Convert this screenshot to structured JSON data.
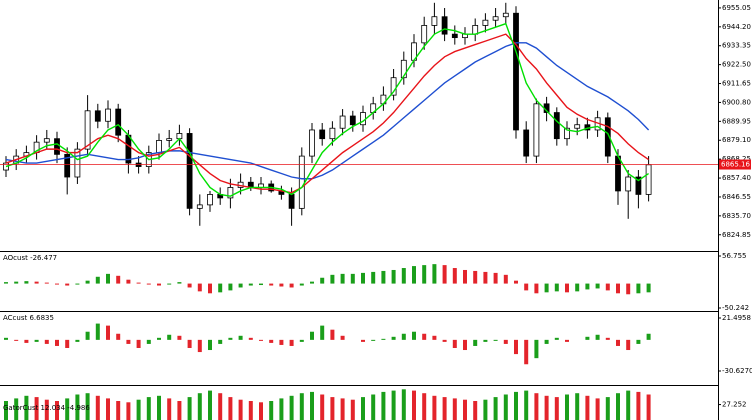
{
  "chart_data": [
    {
      "type": "candlestick",
      "open": [
        6862,
        6866,
        6870,
        6872,
        6878,
        6880,
        6871,
        6858,
        6874,
        6896,
        6890,
        6897,
        6882,
        6866,
        6864,
        6872,
        6879,
        6880,
        6883,
        6840,
        6842,
        6848,
        6846,
        6852,
        6855,
        6852,
        6854,
        6850,
        6848,
        6840,
        6870,
        6885,
        6880,
        6886,
        6893,
        6888,
        6895,
        6900,
        6905,
        6915,
        6925,
        6935,
        6945,
        6950,
        6940,
        6938,
        6940,
        6945,
        6948,
        6950,
        6952,
        6885,
        6870,
        6900,
        6895,
        6880,
        6886,
        6888,
        6885,
        6892,
        6870,
        6850,
        6858,
        6848
      ],
      "high": [
        6870,
        6874,
        6876,
        6882,
        6885,
        6884,
        6875,
        6878,
        6905,
        6900,
        6902,
        6900,
        6885,
        6870,
        6876,
        6883,
        6885,
        6888,
        6886,
        6848,
        6850,
        6852,
        6857,
        6860,
        6858,
        6858,
        6856,
        6853,
        6852,
        6875,
        6889,
        6889,
        6890,
        6897,
        6896,
        6899,
        6904,
        6910,
        6920,
        6930,
        6940,
        6950,
        6958,
        6955,
        6945,
        6944,
        6949,
        6952,
        6955,
        6958,
        6956,
        6890,
        6903,
        6904,
        6898,
        6890,
        6892,
        6892,
        6896,
        6895,
        6874,
        6862,
        6862,
        6870
      ],
      "low": [
        6858,
        6862,
        6866,
        6868,
        6874,
        6866,
        6848,
        6854,
        6870,
        6886,
        6886,
        6878,
        6860,
        6860,
        6860,
        6868,
        6875,
        6876,
        6836,
        6830,
        6838,
        6842,
        6840,
        6848,
        6850,
        6848,
        6849,
        6845,
        6830,
        6836,
        6866,
        6876,
        6876,
        6882,
        6884,
        6884,
        6891,
        6896,
        6902,
        6911,
        6921,
        6931,
        6940,
        6936,
        6934,
        6934,
        6936,
        6941,
        6944,
        6946,
        6880,
        6866,
        6866,
        6890,
        6876,
        6876,
        6882,
        6880,
        6881,
        6866,
        6842,
        6834,
        6840,
        6844
      ],
      "close": [
        6866,
        6870,
        6872,
        6878,
        6880,
        6871,
        6858,
        6874,
        6896,
        6890,
        6897,
        6882,
        6866,
        6864,
        6872,
        6879,
        6880,
        6883,
        6840,
        6842,
        6848,
        6846,
        6852,
        6855,
        6852,
        6854,
        6850,
        6848,
        6840,
        6870,
        6885,
        6880,
        6886,
        6893,
        6888,
        6895,
        6900,
        6905,
        6915,
        6925,
        6935,
        6945,
        6950,
        6940,
        6938,
        6940,
        6945,
        6948,
        6950,
        6952,
        6885,
        6870,
        6900,
        6895,
        6880,
        6886,
        6888,
        6885,
        6892,
        6870,
        6850,
        6858,
        6848,
        6865
      ],
      "up_color": "#ffffff",
      "down_color": "#000000",
      "series": [
        {
          "color": "#1f4fd1",
          "values": [
            6868,
            6867,
            6866,
            6866,
            6867,
            6868,
            6869,
            6870,
            6871,
            6870,
            6869,
            6868,
            6868,
            6869,
            6871,
            6872,
            6873,
            6873,
            6872,
            6871,
            6870,
            6869,
            6868,
            6867,
            6866,
            6864,
            6862,
            6860,
            6858,
            6857,
            6857,
            6859,
            6862,
            6866,
            6870,
            6874,
            6878,
            6882,
            6887,
            6892,
            6897,
            6902,
            6907,
            6912,
            6916,
            6920,
            6924,
            6927,
            6930,
            6933,
            6935,
            6935,
            6932,
            6927,
            6922,
            6918,
            6914,
            6910,
            6907,
            6904,
            6900,
            6896,
            6891,
            6885
          ]
        },
        {
          "color": "#e8141a",
          "values": [
            6866,
            6868,
            6870,
            6872,
            6874,
            6874,
            6872,
            6872,
            6876,
            6880,
            6882,
            6880,
            6876,
            6872,
            6870,
            6871,
            6873,
            6875,
            6870,
            6865,
            6860,
            6856,
            6854,
            6853,
            6852,
            6851,
            6851,
            6850,
            6849,
            6852,
            6857,
            6862,
            6867,
            6872,
            6876,
            6880,
            6884,
            6889,
            6895,
            6902,
            6909,
            6916,
            6922,
            6927,
            6930,
            6932,
            6934,
            6936,
            6938,
            6940,
            6934,
            6926,
            6920,
            6912,
            6905,
            6898,
            6894,
            6891,
            6889,
            6887,
            6883,
            6877,
            6872,
            6868
          ]
        },
        {
          "color": "#00e000",
          "values": [
            6864,
            6866,
            6869,
            6873,
            6876,
            6877,
            6873,
            6868,
            6870,
            6878,
            6885,
            6888,
            6882,
            6874,
            6868,
            6869,
            6874,
            6880,
            6872,
            6860,
            6852,
            6848,
            6847,
            6850,
            6852,
            6852,
            6852,
            6851,
            6848,
            6852,
            6862,
            6872,
            6878,
            6883,
            6887,
            6890,
            6895,
            6900,
            6907,
            6916,
            6925,
            6933,
            6940,
            6943,
            6942,
            6940,
            6940,
            6942,
            6944,
            6946,
            6930,
            6912,
            6902,
            6896,
            6890,
            6885,
            6884,
            6886,
            6887,
            6883,
            6870,
            6860,
            6856,
            6860
          ]
        }
      ],
      "current_price": 6865.16,
      "current_price_color": "#e8141a",
      "ylim": [
        6816.1,
        6959.6
      ],
      "yticks": [
        6955.05,
        {
          "value": 6944.2,
          "label": "6944.20"
        },
        6933.35,
        {
          "value": 6922.5,
          "label": "6922.50"
        },
        6911.65,
        {
          "value": 6900.8,
          "label": "6900.80"
        },
        6889.95,
        {
          "value": 6879.1,
          "label": "6879.10"
        },
        6868.25,
        {
          "value": 6857.4,
          "label": "6857.40"
        },
        6846.55,
        {
          "value": 6835.7,
          "label": "6835.70"
        },
        6824.85
      ]
    },
    {
      "type": "bar",
      "title": "AOcust -26.477",
      "up_color": "#1a9e1a",
      "down_color": "#e3242b",
      "values": [
        3,
        4,
        5,
        4,
        2,
        -2,
        -4,
        -2,
        6,
        14,
        20,
        16,
        8,
        2,
        -2,
        -4,
        -2,
        3,
        -8,
        -16,
        -20,
        -18,
        -14,
        -8,
        -4,
        -3,
        -4,
        -6,
        -8,
        -4,
        4,
        12,
        18,
        20,
        20,
        22,
        24,
        26,
        28,
        32,
        36,
        38,
        40,
        38,
        32,
        28,
        26,
        24,
        22,
        18,
        6,
        -14,
        -20,
        -18,
        -16,
        -18,
        -16,
        -12,
        -10,
        -14,
        -20,
        -22,
        -20,
        -18
      ],
      "ylim": [
        -50.242,
        56.755
      ],
      "yticks": [
        56.755,
        -50.242
      ]
    },
    {
      "type": "bar",
      "title": "ACcust 6.6835",
      "up_color": "#1a9e1a",
      "down_color": "#e3242b",
      "values": [
        2,
        -1,
        -3,
        -2,
        -4,
        -6,
        -8,
        -2,
        8,
        16,
        14,
        6,
        -4,
        -8,
        -4,
        2,
        5,
        4,
        -8,
        -12,
        -10,
        -4,
        2,
        4,
        2,
        -1,
        -3,
        -5,
        -6,
        -2,
        8,
        14,
        10,
        4,
        0,
        -2,
        -1,
        1,
        3,
        6,
        8,
        6,
        4,
        -2,
        -8,
        -10,
        -6,
        -2,
        -1,
        -4,
        -14,
        -24,
        -18,
        -4,
        2,
        -2,
        0,
        3,
        5,
        2,
        -6,
        -10,
        -4,
        6
      ],
      "ylim": [
        -30.627,
        21.4958
      ],
      "yticks": [
        21.4958,
        {
          "value": -30.627,
          "label": "-30.6270"
        }
      ]
    },
    {
      "type": "bar",
      "title": "GatorCust 12.034 -4.986",
      "up_color": "#1a9e1a",
      "down_color": "#e3242b",
      "values": [
        30,
        32,
        34,
        33,
        31,
        30,
        32,
        35,
        36,
        34,
        32,
        30,
        29,
        31,
        33,
        34,
        32,
        30,
        33,
        36,
        38,
        36,
        33,
        31,
        30,
        29,
        30,
        32,
        34,
        36,
        37,
        35,
        33,
        32,
        31,
        33,
        35,
        37,
        38,
        39,
        38,
        36,
        34,
        33,
        32,
        31,
        30,
        31,
        33,
        35,
        37,
        38,
        36,
        34,
        33,
        35,
        36,
        34,
        32,
        33,
        36,
        38,
        37,
        35
      ],
      "ylim": [
        0,
        40
      ],
      "yticks": [
        27.252
      ]
    }
  ]
}
